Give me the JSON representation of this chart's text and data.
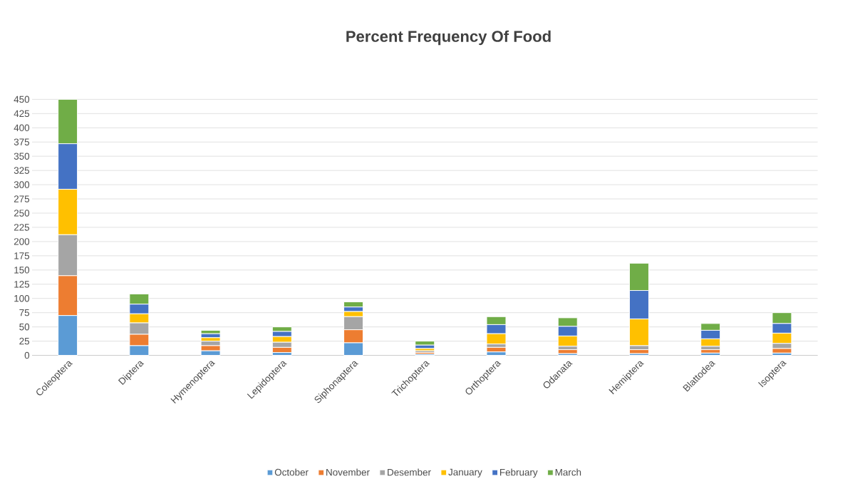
{
  "chart_data": {
    "type": "bar",
    "title": "Percent Frequency Of Food",
    "stacked": true,
    "categories": [
      "Coleoptera",
      "Diptera",
      "Hymenoptera",
      "Lepidoptera",
      "Siphonaptera",
      "Trichoptera",
      "Orthoptera",
      "Odanata",
      "Hemiptera",
      "Blattodea",
      "Isoptera"
    ],
    "series": [
      {
        "name": "October",
        "color": "#5b9bd5",
        "values": [
          70,
          17,
          8,
          5,
          22,
          2,
          6,
          3,
          3,
          4,
          4
        ]
      },
      {
        "name": "November",
        "color": "#ed7d31",
        "values": [
          70,
          20,
          9,
          9,
          23,
          3,
          8,
          7,
          7,
          6,
          8
        ]
      },
      {
        "name": "Desember",
        "color": "#a5a5a5",
        "values": [
          72,
          20,
          8,
          9,
          23,
          3,
          6,
          6,
          7,
          6,
          9
        ]
      },
      {
        "name": "January",
        "color": "#ffc000",
        "values": [
          80,
          16,
          6,
          10,
          9,
          4,
          18,
          18,
          47,
          13,
          18
        ]
      },
      {
        "name": "February",
        "color": "#4472c4",
        "values": [
          80,
          17,
          7,
          9,
          8,
          6,
          16,
          17,
          50,
          15,
          17
        ]
      },
      {
        "name": "March",
        "color": "#70ad47",
        "values": [
          78,
          18,
          6,
          8,
          9,
          7,
          14,
          15,
          48,
          12,
          19
        ]
      }
    ],
    "ylim": [
      0,
      450
    ],
    "yticks": [
      0,
      25,
      50,
      75,
      100,
      125,
      150,
      175,
      200,
      225,
      250,
      275,
      300,
      325,
      350,
      375,
      400,
      425,
      450
    ],
    "grid": "y",
    "legend": "bottom"
  }
}
